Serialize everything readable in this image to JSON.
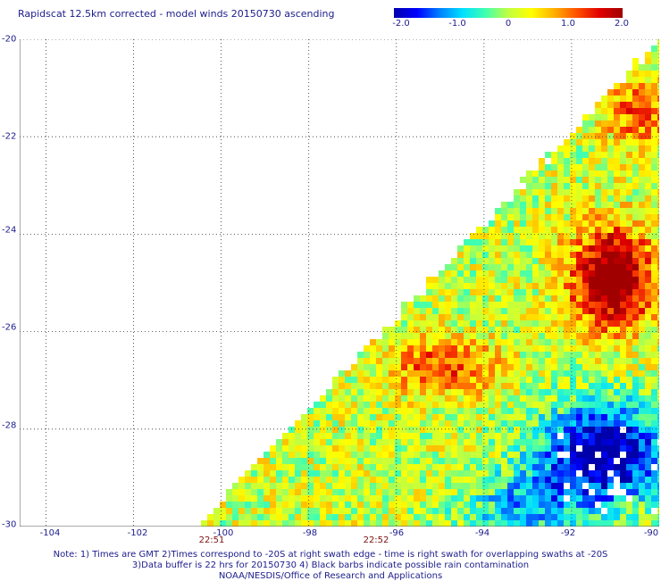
{
  "title": "Rapidscat 12.5km corrected - model winds 20150730 ascending",
  "colorbar": {
    "labels": [
      "-2.0",
      "-1.0",
      "0",
      "1.0",
      "2.0"
    ],
    "min": -2.0,
    "max": 2.0,
    "colors": [
      "#0000aa",
      "#0000ff",
      "#0080ff",
      "#00e0ff",
      "#40ffb0",
      "#c0ff40",
      "#ffff00",
      "#ffb000",
      "#ff5000",
      "#e00000",
      "#a00000"
    ]
  },
  "map": {
    "lon_labels": [
      "-104",
      "-102",
      "-100",
      "-98",
      "-96",
      "-94",
      "-92",
      "-90"
    ],
    "lat_labels": [
      "-20",
      "-22",
      "-24",
      "-26",
      "-28",
      "-30"
    ],
    "lon_range": [
      -104.6,
      -90
    ],
    "lat_range": [
      -20,
      -30
    ],
    "gridlines": true,
    "missing_color": "#ffffff"
  },
  "time_labels": [
    {
      "text": "22:51",
      "lon": -100.3
    },
    {
      "text": "22:52",
      "lon": -96.5
    }
  ],
  "notes": [
    "Note: 1) Times are GMT 2)Times correspond to -20S at right swath edge - time is right swath for overlapping swaths at -20S",
    "3)Data buffer is 22 hrs for 20150730 4) Black barbs indicate possible rain contamination",
    "NOAA/NESDIS/Office of Research and Applications"
  ]
}
